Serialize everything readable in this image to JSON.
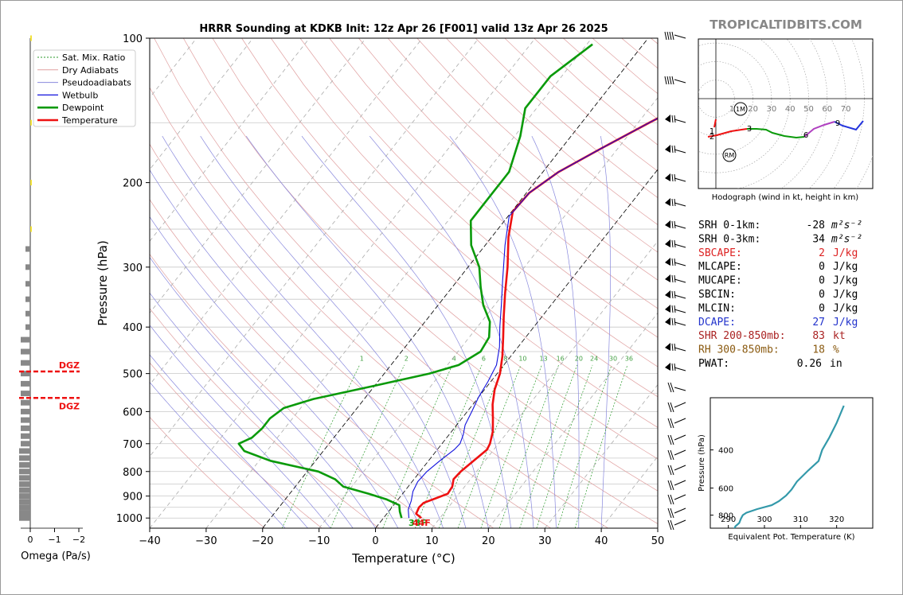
{
  "site": "TROPICALTIDBITS.COM",
  "colors": {
    "temp": "#ee1111",
    "dew": "#0a9a0a",
    "wetbulb": "#1111dd",
    "dry": "#e0a0a0",
    "moist": "#8888dd",
    "mix": "#2a9a2a",
    "omega": "#888888",
    "eqpot": "#3399aa"
  },
  "chart_data": [
    {
      "id": "skewt",
      "type": "line",
      "title": "HRRR Sounding at KDKB Init: 12z Apr 26 [F001] valid 13z Apr 26 2025",
      "xlabel": "Temperature (°C)",
      "ylabel": "Pressure (hPa)",
      "xlim": [
        -40,
        50
      ],
      "ylim": [
        1050,
        100
      ],
      "y_scale": "log",
      "x_ticks": [
        "−40",
        "−30",
        "−20",
        "−10",
        "0",
        "10",
        "20",
        "30",
        "40",
        "50"
      ],
      "y_ticks": [
        "100",
        "200",
        "300",
        "400",
        "500",
        "600",
        "700",
        "800",
        "900",
        "1000"
      ],
      "legend_position": "top-left",
      "legend": [
        "Sat. Mix. Ratio",
        "Dry Adiabats",
        "Pseudoadiabats",
        "Wetbulb",
        "Dewpoint",
        "Temperature"
      ],
      "mixing_ratio_labels": [
        "1",
        "2",
        "4",
        "6",
        "8",
        "10",
        "13",
        "16",
        "20",
        "24",
        "30",
        "36"
      ],
      "surface_labels": {
        "dewpoint": "38F",
        "temperature": "44F"
      },
      "series": [
        {
          "name": "Temperature",
          "points": [
            [
              6.7,
              1000
            ],
            [
              5.2,
              980
            ],
            [
              4.8,
              950
            ],
            [
              5.0,
              930
            ],
            [
              6.5,
              910
            ],
            [
              8.0,
              890
            ],
            [
              7.8,
              860
            ],
            [
              7.0,
              830
            ],
            [
              7.2,
              800
            ],
            [
              8.0,
              760
            ],
            [
              8.8,
              720
            ],
            [
              8.5,
              700
            ],
            [
              7.3,
              660
            ],
            [
              5.5,
              620
            ],
            [
              3.5,
              580
            ],
            [
              1.8,
              540
            ],
            [
              0.5,
              500
            ],
            [
              -1.5,
              460
            ],
            [
              -4.0,
              420
            ],
            [
              -6.8,
              380
            ],
            [
              -9.8,
              340
            ],
            [
              -13.0,
              300
            ],
            [
              -17.0,
              260
            ],
            [
              -19.8,
              230
            ],
            [
              -19.5,
              210
            ],
            [
              -17.2,
              190
            ],
            [
              -13.0,
              170
            ],
            [
              -8.0,
              150
            ],
            [
              -2.0,
              130
            ],
            [
              3.8,
              110
            ],
            [
              6.0,
              103
            ]
          ]
        },
        {
          "name": "Dewpoint",
          "points": [
            [
              3.2,
              1000
            ],
            [
              2.0,
              970
            ],
            [
              1.0,
              940
            ],
            [
              -2.0,
              915
            ],
            [
              -6.0,
              890
            ],
            [
              -11.5,
              860
            ],
            [
              -14.0,
              830
            ],
            [
              -18.0,
              800
            ],
            [
              -28.0,
              760
            ],
            [
              -34.0,
              725
            ],
            [
              -36.0,
              700
            ],
            [
              -34.5,
              680
            ],
            [
              -34.0,
              650
            ],
            [
              -34.0,
              620
            ],
            [
              -33.0,
              590
            ],
            [
              -29.0,
              565
            ],
            [
              -20.0,
              530
            ],
            [
              -12.0,
              500
            ],
            [
              -8.0,
              480
            ],
            [
              -6.0,
              450
            ],
            [
              -6.5,
              420
            ],
            [
              -8.5,
              390
            ],
            [
              -12.0,
              360
            ],
            [
              -15.0,
              330
            ],
            [
              -18.0,
              300
            ],
            [
              -22.5,
              270
            ],
            [
              -26.0,
              240
            ],
            [
              -26.0,
              210
            ],
            [
              -26.0,
              190
            ],
            [
              -29.0,
              160
            ],
            [
              -32.0,
              140
            ],
            [
              -32.0,
              120
            ],
            [
              -29.0,
              103
            ]
          ]
        },
        {
          "name": "Wetbulb",
          "points": [
            [
              4.5,
              1000
            ],
            [
              3.2,
              960
            ],
            [
              2.5,
              920
            ],
            [
              1.5,
              880
            ],
            [
              1.0,
              840
            ],
            [
              1.2,
              800
            ],
            [
              2.0,
              760
            ],
            [
              3.0,
              720
            ],
            [
              3.2,
              700
            ],
            [
              2.5,
              670
            ],
            [
              1.5,
              640
            ],
            [
              0.8,
              600
            ],
            [
              0.0,
              560
            ],
            [
              -0.5,
              520
            ],
            [
              -1.3,
              480
            ],
            [
              -3.3,
              440
            ],
            [
              -6.0,
              400
            ],
            [
              -8.8,
              360
            ],
            [
              -12.0,
              320
            ],
            [
              -16.5,
              270
            ],
            [
              -19.8,
              235
            ],
            [
              -19.5,
              210
            ],
            [
              -17.2,
              190
            ],
            [
              -13.0,
              170
            ],
            [
              -8.0,
              150
            ],
            [
              -2.0,
              130
            ],
            [
              3.5,
              110
            ],
            [
              5.5,
              103
            ]
          ]
        }
      ]
    },
    {
      "id": "omega",
      "type": "bar",
      "xlabel": "Omega (Pa/s)",
      "x_ticks": [
        "0",
        "−1",
        "−2"
      ],
      "dgz_label": "DGZ",
      "dgz_levels": [
        495,
        562
      ]
    },
    {
      "id": "hodograph",
      "type": "line",
      "caption": "Hodograph (wind in kt, height in km)",
      "ring_labels": [
        "10",
        "20",
        "30",
        "40",
        "50",
        "60",
        "70"
      ],
      "height_labels": [
        "1",
        "2",
        "3",
        "6",
        "9"
      ],
      "markers": [
        "1M",
        "RM"
      ]
    },
    {
      "id": "eqpot",
      "type": "line",
      "ylabel": "Pressure (hPa)",
      "xlabel": "Equivalent Pot. Temperature (K)",
      "x_ticks": [
        "290",
        "300",
        "310",
        "320"
      ],
      "y_ticks": [
        "400",
        "600",
        "800"
      ],
      "xlim": [
        285,
        330
      ],
      "ylim": [
        1000,
        250
      ],
      "points": [
        [
          294,
          1000
        ],
        [
          292.5,
          990
        ],
        [
          291.8,
          960
        ],
        [
          291.5,
          930
        ],
        [
          292,
          900
        ],
        [
          293,
          870
        ],
        [
          293.5,
          830
        ],
        [
          294,
          800
        ],
        [
          295,
          780
        ],
        [
          298,
          750
        ],
        [
          302,
          720
        ],
        [
          304,
          690
        ],
        [
          306,
          650
        ],
        [
          307.5,
          610
        ],
        [
          309,
          560
        ],
        [
          312,
          500
        ],
        [
          315,
          450
        ],
        [
          316,
          400
        ],
        [
          318,
          350
        ],
        [
          320,
          300
        ],
        [
          322,
          250
        ]
      ]
    }
  ],
  "indices": [
    {
      "label": "SRH 0-1km:",
      "value": "-28",
      "unit": "m²s⁻²",
      "color": "#000000"
    },
    {
      "label": "SRH 0-3km:",
      "value": "34",
      "unit": "m²s⁻²",
      "color": "#000000"
    },
    {
      "label": "SBCAPE:",
      "value": "2",
      "unit": "J/kg",
      "color": "#dd2222"
    },
    {
      "label": "MLCAPE:",
      "value": "0",
      "unit": "J/kg",
      "color": "#000000"
    },
    {
      "label": "MUCAPE:",
      "value": "0",
      "unit": "J/kg",
      "color": "#000000"
    },
    {
      "label": "SBCIN:",
      "value": "0",
      "unit": "J/kg",
      "color": "#000000"
    },
    {
      "label": "MLCIN:",
      "value": "0",
      "unit": "J/kg",
      "color": "#000000"
    },
    {
      "label": "DCAPE:",
      "value": "27",
      "unit": "J/kg",
      "color": "#2233cc"
    },
    {
      "label": "SHR 200-850mb:",
      "value": "83",
      "unit": "kt",
      "color": "#aa2222"
    },
    {
      "label": "RH 300-850mb:",
      "value": "18",
      "unit": "%",
      "color": "#8a5a10"
    },
    {
      "label": "PWAT:",
      "value": "0.26",
      "unit": "in",
      "color": "#000000"
    }
  ]
}
